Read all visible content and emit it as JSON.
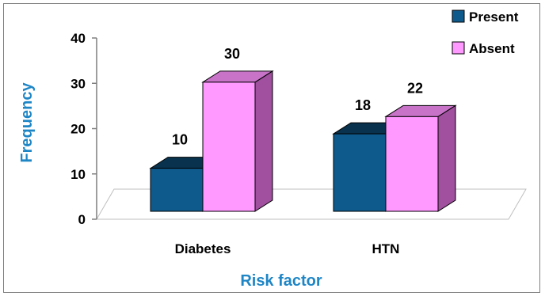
{
  "chart_data": {
    "type": "bar",
    "categories": [
      "Diabetes",
      "HTN"
    ],
    "series": [
      {
        "name": "Present",
        "values": [
          10,
          18
        ]
      },
      {
        "name": "Absent",
        "values": [
          30,
          22
        ]
      }
    ],
    "xlabel": "Risk factor",
    "ylabel": "Frequency",
    "ylim": [
      0,
      40
    ],
    "yticks": [
      "0",
      "10",
      "20",
      "30",
      "40"
    ],
    "grid": false,
    "legend": "top-right",
    "style": "3d-column"
  },
  "colors": {
    "present": "#0f5a8c",
    "absent": "#ff99ff",
    "axis_title": "#1f86c6"
  }
}
